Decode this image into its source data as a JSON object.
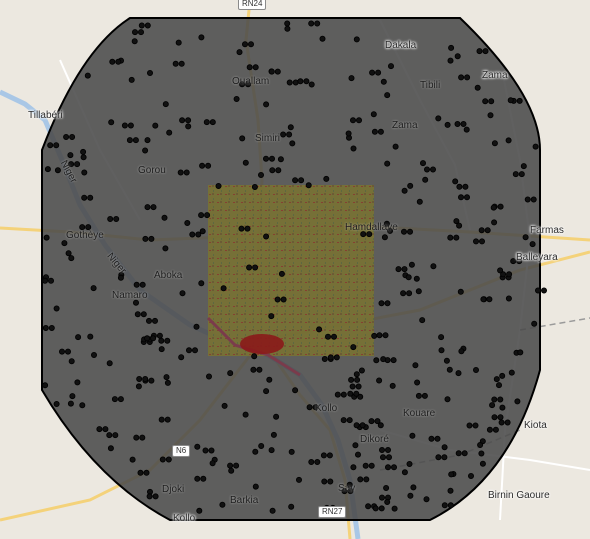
{
  "map": {
    "places": [
      {
        "id": "dakala",
        "name": "Dakala"
      },
      {
        "id": "zama",
        "name": "Zama"
      },
      {
        "id": "tillaberi",
        "name": "Tillabéri"
      },
      {
        "id": "ouallam",
        "name": "Ouallam"
      },
      {
        "id": "tibili",
        "name": "Tibili"
      },
      {
        "id": "zama-2",
        "name": "Zama"
      },
      {
        "id": "simiri",
        "name": "Simiri"
      },
      {
        "id": "gorou",
        "name": "Gorou"
      },
      {
        "id": "gothaye",
        "name": "Gothèye"
      },
      {
        "id": "hamdallaye",
        "name": "Hamdallaye"
      },
      {
        "id": "farmas",
        "name": "Farmas"
      },
      {
        "id": "balleyara",
        "name": "Balleyara"
      },
      {
        "id": "aboka",
        "name": "Aboka"
      },
      {
        "id": "namaro",
        "name": "Namaro"
      },
      {
        "id": "kollo",
        "name": "Kollo"
      },
      {
        "id": "kiota",
        "name": "Kiota"
      },
      {
        "id": "kouare",
        "name": "Kouare"
      },
      {
        "id": "dikore",
        "name": "Dikoré"
      },
      {
        "id": "birnin-gaoure",
        "name": "Birnin Gaoure"
      },
      {
        "id": "djoki",
        "name": "Djoki"
      },
      {
        "id": "barkia",
        "name": "Barkia"
      },
      {
        "id": "say",
        "name": "Say"
      },
      {
        "id": "kollo-2",
        "name": "Kollo"
      }
    ],
    "road_shields": [
      {
        "id": "rn24",
        "label": "RN24"
      },
      {
        "id": "n6",
        "label": "N6"
      },
      {
        "id": "rn27",
        "label": "RN27"
      }
    ],
    "rivers": [
      {
        "id": "niger",
        "name": "Niger"
      },
      {
        "id": "niger-2",
        "name": "Niger"
      }
    ],
    "colors": {
      "background": "#ece8e0",
      "buffer_fill": "#4a4a4a",
      "buffer_stroke": "#000000",
      "raster_base": "#77702f",
      "city_core": "#8b1a1a",
      "river": "#a9c7e6",
      "road_major": "#f4d27a",
      "marker": "#000000"
    }
  }
}
